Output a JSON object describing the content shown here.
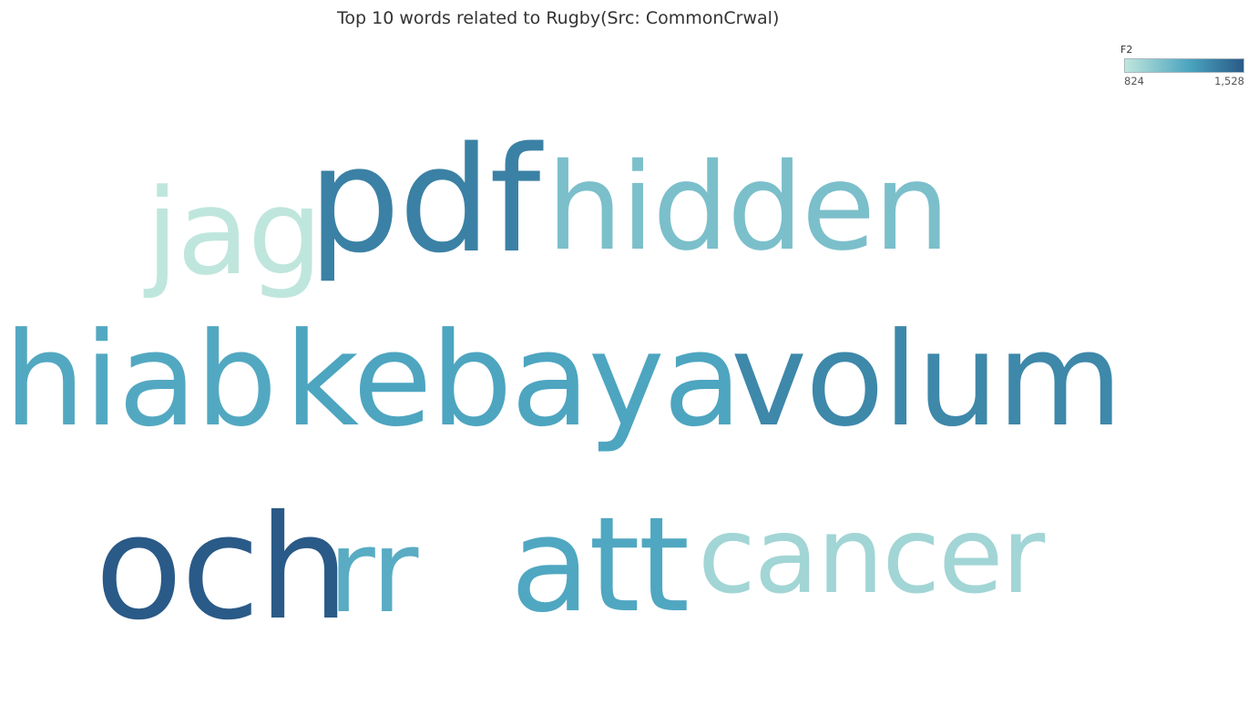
{
  "chart_data": {
    "type": "wordcloud",
    "title": "Top 10 words related to Rugby(Src: CommonCrwal)",
    "legend": {
      "title": "F2",
      "min_label": "824",
      "max_label": "1,528",
      "min": 824,
      "max": 1528,
      "color_low": "#bfe6dc",
      "color_mid": "#4aa3bf",
      "color_high": "#2a5a87"
    },
    "words": [
      {
        "text": "jag",
        "value": 824
      },
      {
        "text": "pdf",
        "value": 1360
      },
      {
        "text": "hidden",
        "value": 1050
      },
      {
        "text": "hiab",
        "value": 1180
      },
      {
        "text": "kebaya",
        "value": 1200
      },
      {
        "text": "volum",
        "value": 1330
      },
      {
        "text": "och",
        "value": 1528
      },
      {
        "text": "rr",
        "value": 1160
      },
      {
        "text": "att",
        "value": 1190
      },
      {
        "text": "cancer",
        "value": 920
      }
    ]
  }
}
